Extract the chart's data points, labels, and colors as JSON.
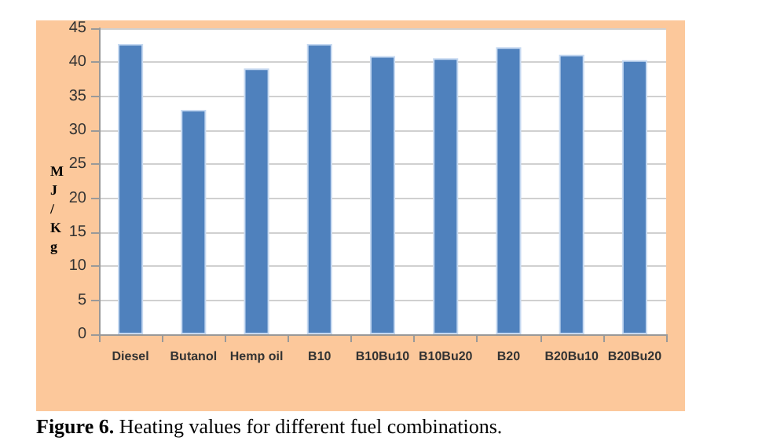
{
  "chart_data": {
    "type": "bar",
    "categories": [
      "Diesel",
      "Butanol",
      "Hemp oil",
      "B10",
      "B10Bu10",
      "B10Bu20",
      "B20",
      "B20Bu10",
      "B20Bu20"
    ],
    "values": [
      42.7,
      33,
      39.1,
      42.7,
      40.9,
      40.6,
      42.2,
      41.1,
      40.3
    ],
    "color": "#4f81bd",
    "ylabel": "MJ/Kg",
    "ylim": [
      0,
      45
    ],
    "yticks": [
      0,
      5,
      10,
      15,
      20,
      25,
      30,
      35,
      40,
      45
    ],
    "grid": "y",
    "annotations": [
      "Figure 6. Heating values for different fuel combinations."
    ]
  }
}
